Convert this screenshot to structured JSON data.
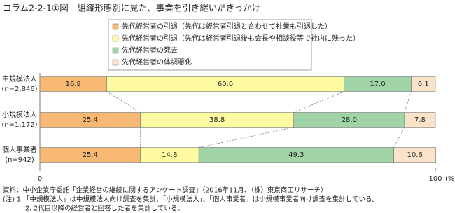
{
  "chart_data": {
    "type": "stacked-bar-horizontal",
    "title": "コラム2-2-1①図　組織形態別に見た、事業を引き継いだきっかけ",
    "categories": [
      "中規模法人",
      "小規模法人",
      "個人事業者"
    ],
    "category_notes": [
      "(n=2,846)",
      "(n=1,172)",
      "(n=942)"
    ],
    "series": [
      {
        "name": "先代経営者の引退（先代は経営者引退と合わせて社業も引退した）",
        "color": "#f6b873",
        "values": [
          16.9,
          25.4,
          25.4
        ],
        "value_labels": [
          "16.9",
          "25.4",
          "25.4"
        ]
      },
      {
        "name": "先代経営者の引退（先代は経営者引退後も会長や相談役等で社内に残った）",
        "color": "#fdfaa2",
        "values": [
          60.0,
          38.8,
          14.8
        ],
        "value_labels": [
          "60.0",
          "38.8",
          "14.8"
        ]
      },
      {
        "name": "先代経営者の死去",
        "color": "#a0d4a6",
        "values": [
          17.0,
          28.0,
          49.3
        ],
        "value_labels": [
          "17.0",
          "28.0",
          "49.3"
        ]
      },
      {
        "name": "先代経営者の体調悪化",
        "color": "#fbe3c9",
        "values": [
          6.1,
          7.8,
          10.6
        ],
        "value_labels": [
          "6.1",
          "7.8",
          "10.6"
        ]
      }
    ],
    "xlim": [
      0,
      100
    ],
    "xticks": [
      0,
      100
    ],
    "x_unit": "(%)",
    "notes": [
      "資料：中小企業庁委託「企業経営の継続に関するアンケート調査」（2016年11月、（株）東京商工リサーチ）",
      "(注) 1.「中規模法人」は中規模法人向け調査を集計、「小規模法人」、「個人事業者」は小規模事業者向け調査を集計している。",
      "2. 2代目以降の経営者と回答した者を集計している。"
    ]
  }
}
